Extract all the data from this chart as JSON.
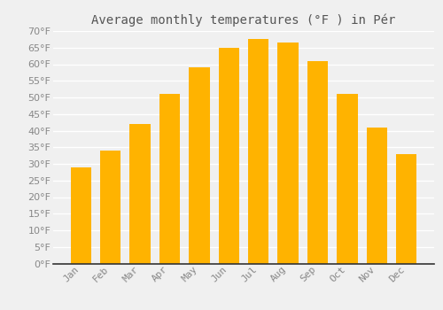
{
  "title": "Average monthly temperatures (°F ) in Pér",
  "months": [
    "Jan",
    "Feb",
    "Mar",
    "Apr",
    "May",
    "Jun",
    "Jul",
    "Aug",
    "Sep",
    "Oct",
    "Nov",
    "Dec"
  ],
  "values": [
    29,
    34,
    42,
    51,
    59,
    65,
    67.5,
    66.5,
    61,
    51,
    41,
    33
  ],
  "bar_color_top": "#FFB300",
  "bar_color_bottom": "#FFD060",
  "background_color": "#F0F0F0",
  "grid_color": "#FFFFFF",
  "ylim": [
    0,
    70
  ],
  "yticks": [
    0,
    5,
    10,
    15,
    20,
    25,
    30,
    35,
    40,
    45,
    50,
    55,
    60,
    65,
    70
  ],
  "title_fontsize": 10,
  "tick_fontsize": 8,
  "tick_color": "#888888",
  "axis_color": "#333333"
}
